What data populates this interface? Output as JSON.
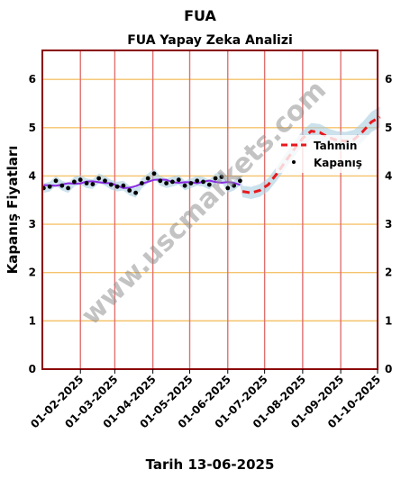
{
  "chart_data": {
    "type": "line",
    "title": "FUA",
    "subtitle": "FUA Yapay Zeka Analizi",
    "xlabel": "Tarih 13-06-2025",
    "ylabel": "Kapanış Fiyatları",
    "ylim": [
      0,
      6.6
    ],
    "yticks": [
      0,
      1,
      2,
      3,
      4,
      5,
      6
    ],
    "x_range": [
      "2025-01-01",
      "2025-10-01"
    ],
    "xticks": [
      "01-02-2025",
      "01-03-2025",
      "01-04-2025",
      "01-05-2025",
      "01-06-2025",
      "01-07-2025",
      "01-08-2025",
      "01-09-2025",
      "01-10-2025"
    ],
    "xtick_dates": [
      "2025-02-01",
      "2025-03-01",
      "2025-04-01",
      "2025-05-01",
      "2025-06-01",
      "2025-07-01",
      "2025-08-01",
      "2025-09-01",
      "2025-10-01"
    ],
    "grid": "on",
    "legend_position": "right",
    "watermark": "www.uscmarkets.com",
    "colors": {
      "forecast": "#e8191e",
      "close": "#000000",
      "band": "#a8cde0",
      "smooth": "#8a2be2",
      "hgrid": "#f5c36b",
      "vgrid": "#e07070",
      "frame": "#8b0000"
    },
    "series": [
      {
        "name": "Tahmin",
        "style": "dashed",
        "x": [
          "2025-06-13",
          "2025-06-20",
          "2025-06-27",
          "2025-07-04",
          "2025-07-11",
          "2025-07-18",
          "2025-07-25",
          "2025-08-01",
          "2025-08-08",
          "2025-08-15",
          "2025-08-22",
          "2025-08-29",
          "2025-09-05",
          "2025-09-12",
          "2025-09-19",
          "2025-09-26",
          "2025-10-03"
        ],
        "values": [
          3.68,
          3.65,
          3.7,
          3.82,
          4.05,
          4.3,
          4.55,
          4.78,
          4.93,
          4.9,
          4.8,
          4.74,
          4.72,
          4.76,
          4.92,
          5.12,
          5.22
        ]
      },
      {
        "name": "Kapanış",
        "style": "dots",
        "x": [
          "2025-01-02",
          "2025-01-07",
          "2025-01-12",
          "2025-01-17",
          "2025-01-22",
          "2025-01-27",
          "2025-02-01",
          "2025-02-06",
          "2025-02-11",
          "2025-02-16",
          "2025-02-21",
          "2025-02-26",
          "2025-03-03",
          "2025-03-08",
          "2025-03-13",
          "2025-03-18",
          "2025-03-23",
          "2025-03-28",
          "2025-04-02",
          "2025-04-07",
          "2025-04-12",
          "2025-04-17",
          "2025-04-22",
          "2025-04-27",
          "2025-05-02",
          "2025-05-07",
          "2025-05-12",
          "2025-05-17",
          "2025-05-22",
          "2025-05-27",
          "2025-06-01",
          "2025-06-06",
          "2025-06-11"
        ],
        "values": [
          3.75,
          3.78,
          3.9,
          3.8,
          3.75,
          3.88,
          3.92,
          3.85,
          3.83,
          3.95,
          3.9,
          3.82,
          3.78,
          3.8,
          3.7,
          3.65,
          3.85,
          3.95,
          4.05,
          3.9,
          3.85,
          3.88,
          3.92,
          3.8,
          3.85,
          3.9,
          3.88,
          3.82,
          3.95,
          3.98,
          3.75,
          3.8,
          3.9
        ]
      }
    ]
  }
}
